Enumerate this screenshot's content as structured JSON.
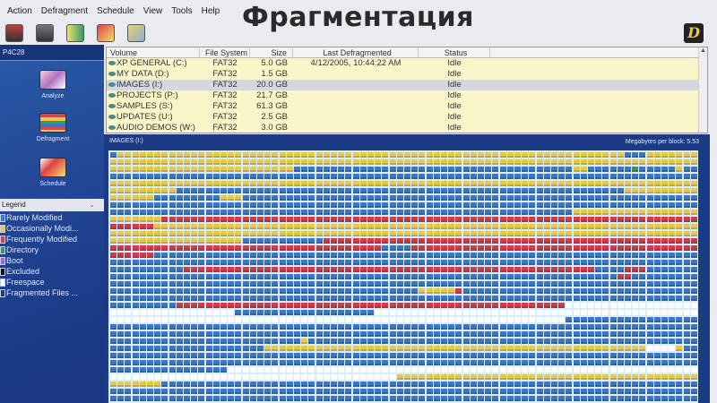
{
  "slide_title": "Фрагментация",
  "menu": [
    "Action",
    "Defragment",
    "Schedule",
    "View",
    "Tools",
    "Help"
  ],
  "toolbar_icons": [
    "analyze-icon",
    "stop-icon",
    "report-icon",
    "schedule-icon",
    "settings-icon"
  ],
  "sidebar": {
    "machine": "P4C28",
    "actions": [
      {
        "label": "Analyze"
      },
      {
        "label": "Defragment"
      },
      {
        "label": "Schedule"
      }
    ]
  },
  "legend": {
    "title": "Legend",
    "items": [
      {
        "label": "Rarely Modified",
        "color": "#3a78c8"
      },
      {
        "label": "Occasionally Modi...",
        "color": "#e8c84a"
      },
      {
        "label": "Frequently Modified",
        "color": "#d0404a"
      },
      {
        "label": "Directory",
        "color": "#2f9a70"
      },
      {
        "label": "Boot",
        "color": "#9a6ad0"
      },
      {
        "label": "Excluded",
        "color": "#111111"
      },
      {
        "label": "Freespace",
        "color": "#ffffff"
      },
      {
        "label": "Fragmented Files ...",
        "color": "#1d3b84"
      }
    ]
  },
  "volumes": {
    "columns": [
      "Volume",
      "File System",
      "Size",
      "Last Defragmented",
      "Status"
    ],
    "rows": [
      [
        "XP GENERAL (C:)",
        "FAT32",
        "5.0 GB",
        "4/12/2005, 10:44:22 AM",
        "Idle"
      ],
      [
        "MY DATA (D:)",
        "FAT32",
        "1.5 GB",
        "",
        "Idle"
      ],
      [
        "IMAGES (I:)",
        "FAT32",
        "20.0 GB",
        "",
        "Idle"
      ],
      [
        "PROJECTS (P:)",
        "FAT32",
        "21.7 GB",
        "",
        "Idle"
      ],
      [
        "SAMPLES (S:)",
        "FAT32",
        "61.3 GB",
        "",
        "Idle"
      ],
      [
        "UPDATES (U:)",
        "FAT32",
        "2.5 GB",
        "",
        "Idle"
      ],
      [
        "AUDIO DEMOS (W:)",
        "FAT32",
        "3.0 GB",
        "",
        "Idle"
      ]
    ],
    "selected": 2
  },
  "map": {
    "title": "IMAGES (I:)",
    "megabytes_per_block": "Megabytes per block: 5.53",
    "colors": {
      "Y": "#e6c64c",
      "B": "#3a76c6",
      "R": "#cf3c48",
      "W": "#ffffff",
      "G": "#2f9a60"
    },
    "rows": [
      "B1Y69B3Y7",
      "Y80",
      "Y25B38Y2B6G1B5Y1B2",
      "B80",
      "Y80",
      "Y9B61Y10",
      "Y6B9Y3B62",
      "B80",
      "B63Y17",
      "Y7R73",
      "R6Y74",
      "Y80",
      "Y18B11R51",
      "R37B4R39",
      "R6B74",
      "B80",
      "B10R56B4R3B7",
      "B69R2B9",
      "B80",
      "B42Y5R1B32",
      "B80",
      "B9R53W18",
      "W17B19W44",
      "W62B18",
      "B80",
      "B80",
      "B26Y1B53",
      "B21Y52W4Y1B2",
      "B80",
      "B80",
      "B16W64",
      "W39Y41",
      "Y7B73",
      "B80",
      "B80"
    ]
  }
}
